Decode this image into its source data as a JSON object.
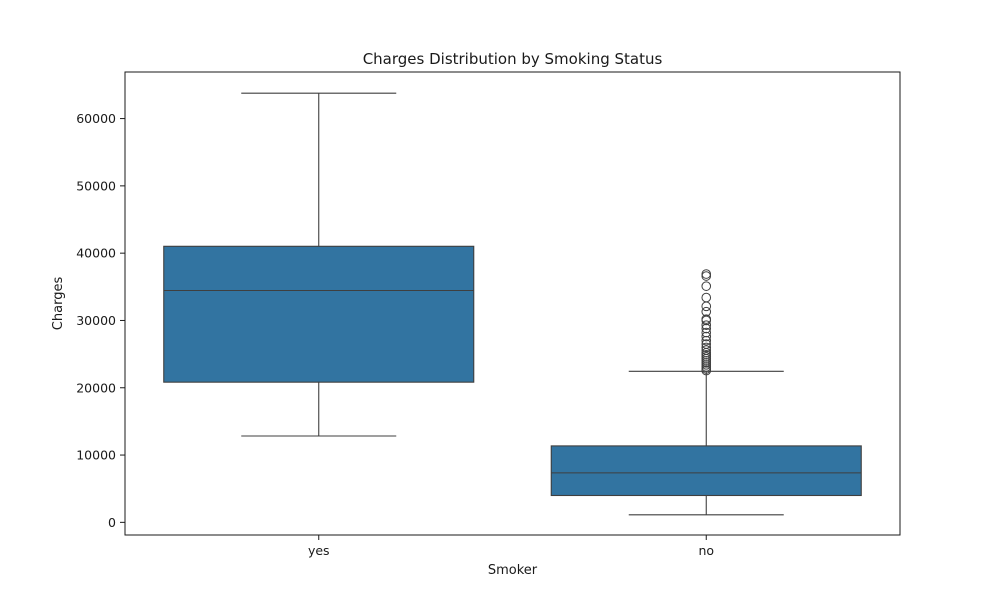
{
  "chart_data": {
    "type": "box",
    "title": "Charges Distribution by Smoking Status",
    "xlabel": "Smoker",
    "ylabel": "Charges",
    "categories": [
      "yes",
      "no"
    ],
    "ylim": [
      -1880,
      66920
    ],
    "yticks": [
      0,
      10000,
      20000,
      30000,
      40000,
      50000,
      60000
    ],
    "ytick_labels": [
      "0",
      "10000",
      "20000",
      "30000",
      "40000",
      "50000",
      "60000"
    ],
    "grid": false,
    "legend": "none",
    "box_color": "#3274a1",
    "line_color": "#3f3f3f",
    "boxes": [
      {
        "category": "yes",
        "whisker_low": 12830,
        "q1": 20830,
        "median": 34450,
        "q3": 41020,
        "whisker_high": 63770,
        "outliers": []
      },
      {
        "category": "no",
        "whisker_low": 1120,
        "q1": 3990,
        "median": 7350,
        "q3": 11360,
        "whisker_high": 22450,
        "outliers": [
          22550,
          22800,
          23100,
          23400,
          23700,
          24000,
          24300,
          24600,
          24900,
          25200,
          25600,
          26000,
          26500,
          27000,
          27600,
          28200,
          28800,
          29300,
          30000,
          30200,
          31300,
          32100,
          33400,
          35100,
          36600,
          36900
        ]
      }
    ]
  }
}
